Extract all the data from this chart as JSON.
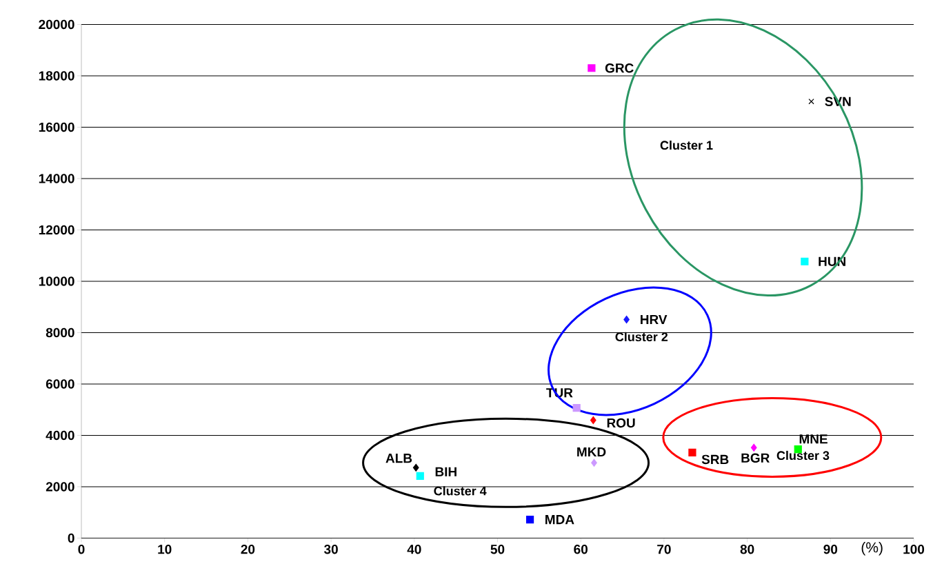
{
  "chart_data": {
    "type": "scatter",
    "xlabel": "(%)",
    "xlim": [
      0,
      100
    ],
    "ylim": [
      0,
      20000
    ],
    "xticks": [
      0,
      10,
      20,
      30,
      40,
      50,
      60,
      70,
      80,
      90,
      100
    ],
    "yticks": [
      0,
      2000,
      4000,
      6000,
      8000,
      10000,
      12000,
      14000,
      16000,
      18000,
      20000
    ],
    "grid": "y",
    "series": [
      {
        "name": "GRC",
        "color": "#ff00ff",
        "marker": "square",
        "x": [
          61.3
        ],
        "values": [
          18300
        ]
      },
      {
        "name": "SVN",
        "color": "#000000",
        "marker": "cross",
        "x": [
          87.7
        ],
        "values": [
          17000
        ]
      },
      {
        "name": "HUN",
        "color": "#00ffff",
        "marker": "square",
        "x": [
          86.9
        ],
        "values": [
          10770
        ]
      },
      {
        "name": "HRV",
        "color": "#1a1aff",
        "marker": "diamond",
        "x": [
          65.5
        ],
        "values": [
          8510
        ]
      },
      {
        "name": "TUR",
        "color": "#cc99ff",
        "marker": "square",
        "x": [
          59.5
        ],
        "values": [
          5070
        ]
      },
      {
        "name": "ROU",
        "color": "#ff0000",
        "marker": "diamond",
        "x": [
          61.5
        ],
        "values": [
          4590
        ]
      },
      {
        "name": "MKD",
        "color": "#cc99ff",
        "marker": "diamond",
        "x": [
          61.6
        ],
        "values": [
          2930
        ]
      },
      {
        "name": "SRB",
        "color": "#ff0000",
        "marker": "square",
        "x": [
          73.4
        ],
        "values": [
          3330
        ]
      },
      {
        "name": "BGR",
        "color": "#ff00ff",
        "marker": "diamond",
        "x": [
          80.8
        ],
        "values": [
          3520
        ]
      },
      {
        "name": "MNE",
        "color": "#00ff00",
        "marker": "square",
        "x": [
          86.1
        ],
        "values": [
          3460
        ]
      },
      {
        "name": "ALB",
        "color": "#000000",
        "marker": "diamond",
        "x": [
          40.2
        ],
        "values": [
          2740
        ]
      },
      {
        "name": "BIH",
        "color": "#00ffff",
        "marker": "square",
        "x": [
          40.7
        ],
        "values": [
          2420
        ]
      },
      {
        "name": "MDA",
        "color": "#0000ff",
        "marker": "square",
        "x": [
          53.9
        ],
        "values": [
          720
        ]
      }
    ],
    "annotations": [
      "Cluster 1",
      "Cluster 2",
      "Cluster 3",
      "Cluster 4"
    ]
  }
}
